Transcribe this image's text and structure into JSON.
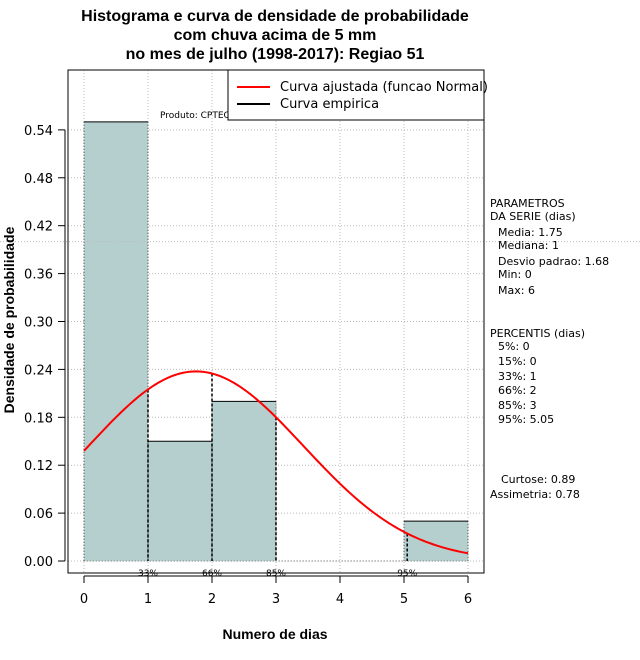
{
  "chart_data": {
    "type": "bar",
    "title": [
      "Histograma e curva de densidade de probabilidade",
      "com chuva acima de 5 mm",
      "no mes de julho (1998-2017): Regiao 51"
    ],
    "xlabel": "Numero de dias",
    "ylabel": "Densidade de probabilidade",
    "xlim": [
      -0.25,
      6.25
    ],
    "ylim": [
      -0.015,
      0.615
    ],
    "x_ticks": [
      "0",
      "1",
      "2",
      "3",
      "4",
      "5",
      "6"
    ],
    "y_ticks": [
      "0.00",
      "0.06",
      "0.12",
      "0.18",
      "0.24",
      "0.30",
      "0.36",
      "0.42",
      "0.48",
      "0.54"
    ],
    "bins": [
      {
        "from": 0,
        "to": 1,
        "density": 0.55
      },
      {
        "from": 1,
        "to": 2,
        "density": 0.15
      },
      {
        "from": 2,
        "to": 3,
        "density": 0.2
      },
      {
        "from": 3,
        "to": 4,
        "density": 0.0
      },
      {
        "from": 4,
        "to": 5,
        "density": 0.0
      },
      {
        "from": 5,
        "to": 6,
        "density": 0.05
      }
    ],
    "bar_color": "#b5cece",
    "curve_color": "#ff0000",
    "normal_fit": {
      "mean": 1.75,
      "sd": 1.68
    },
    "reference_hline": 0.4,
    "percentile_markers": [
      {
        "x": 1,
        "label": "33%"
      },
      {
        "x": 2,
        "label": "66%"
      },
      {
        "x": 3,
        "label": "85%"
      },
      {
        "x": 5.05,
        "label": "95%"
      }
    ],
    "legend": {
      "position": "top-right",
      "entries": [
        {
          "label": "Curva ajustada (funcao Normal)",
          "color": "#ff0000"
        },
        {
          "label": "Curva empirica",
          "color": "#000000"
        }
      ]
    },
    "annotation": "Produto: CPTEC/INPE"
  },
  "side_panel": {
    "parametros_title": [
      "PARAMETROS",
      "DA SERIE (dias)"
    ],
    "parametros": [
      "Media: 1.75",
      "Mediana: 1",
      "Desvio padrao: 1.68",
      "Min: 0",
      "Max: 6"
    ],
    "percentis_title": "PERCENTIS (dias)",
    "percentis": [
      "5%: 0",
      "15%: 0",
      "33%: 1",
      "66%: 2",
      "85%: 3",
      "95%: 5.05"
    ],
    "curtose": "Curtose: 0.89",
    "assimetria": "Assimetria: 0.78"
  }
}
